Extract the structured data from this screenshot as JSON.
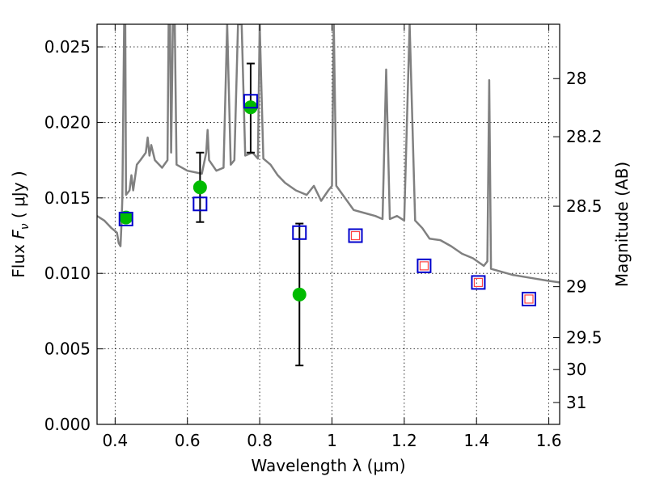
{
  "chart_data": {
    "type": "scatter",
    "xlabel": "Wavelength  λ (μm)",
    "ylabel": "Flux  F_ν  ( μJy )",
    "ylabel_right": "Magnitude (AB)",
    "xlim": [
      0.35,
      1.63
    ],
    "ylim": [
      0.0,
      0.0265
    ],
    "grid": true,
    "x_ticks": [
      {
        "value": 0.4,
        "label": "0.4"
      },
      {
        "value": 0.6,
        "label": "0.6"
      },
      {
        "value": 0.8,
        "label": "0.8"
      },
      {
        "value": 1.0,
        "label": "1"
      },
      {
        "value": 1.2,
        "label": "1.2"
      },
      {
        "value": 1.4,
        "label": "1.4"
      },
      {
        "value": 1.6,
        "label": "1.6"
      }
    ],
    "y_ticks": [
      {
        "value": 0.0,
        "label": "0.000"
      },
      {
        "value": 0.005,
        "label": "0.005"
      },
      {
        "value": 0.01,
        "label": "0.010"
      },
      {
        "value": 0.015,
        "label": "0.015"
      },
      {
        "value": 0.02,
        "label": "0.020"
      },
      {
        "value": 0.025,
        "label": "0.025"
      }
    ],
    "right_ticks": [
      {
        "flux": 0.0229,
        "label": "28"
      },
      {
        "flux": 0.01905,
        "label": "28.2"
      },
      {
        "flux": 0.01445,
        "label": "28.5"
      },
      {
        "flux": 0.00912,
        "label": "29"
      },
      {
        "flux": 0.00575,
        "label": "29.5"
      },
      {
        "flux": 0.00363,
        "label": "30"
      },
      {
        "flux": 0.00145,
        "label": "31"
      }
    ],
    "series": [
      {
        "kind": "model_spectrum",
        "color": "#808080",
        "points": [
          [
            0.35,
            0.0138
          ],
          [
            0.37,
            0.0135
          ],
          [
            0.39,
            0.013
          ],
          [
            0.405,
            0.0127
          ],
          [
            0.41,
            0.012
          ],
          [
            0.415,
            0.0118
          ],
          [
            0.418,
            0.0135
          ],
          [
            0.42,
            0.015
          ],
          [
            0.425,
            0.0265
          ],
          [
            0.428,
            0.0265
          ],
          [
            0.43,
            0.0152
          ],
          [
            0.44,
            0.0155
          ],
          [
            0.445,
            0.0165
          ],
          [
            0.45,
            0.0155
          ],
          [
            0.46,
            0.0172
          ],
          [
            0.47,
            0.0175
          ],
          [
            0.485,
            0.018
          ],
          [
            0.49,
            0.019
          ],
          [
            0.495,
            0.0178
          ],
          [
            0.5,
            0.0185
          ],
          [
            0.51,
            0.0175
          ],
          [
            0.53,
            0.017
          ],
          [
            0.545,
            0.0175
          ],
          [
            0.548,
            0.0265
          ],
          [
            0.552,
            0.0265
          ],
          [
            0.555,
            0.018
          ],
          [
            0.56,
            0.0265
          ],
          [
            0.565,
            0.0265
          ],
          [
            0.57,
            0.0172
          ],
          [
            0.6,
            0.0168
          ],
          [
            0.64,
            0.0166
          ],
          [
            0.652,
            0.018
          ],
          [
            0.656,
            0.0195
          ],
          [
            0.66,
            0.0175
          ],
          [
            0.68,
            0.0168
          ],
          [
            0.7,
            0.017
          ],
          [
            0.71,
            0.0265
          ],
          [
            0.72,
            0.0172
          ],
          [
            0.73,
            0.0175
          ],
          [
            0.74,
            0.0265
          ],
          [
            0.75,
            0.0265
          ],
          [
            0.76,
            0.0178
          ],
          [
            0.78,
            0.018
          ],
          [
            0.795,
            0.0176
          ],
          [
            0.8,
            0.0265
          ],
          [
            0.81,
            0.0176
          ],
          [
            0.83,
            0.0172
          ],
          [
            0.85,
            0.0165
          ],
          [
            0.87,
            0.016
          ],
          [
            0.9,
            0.0155
          ],
          [
            0.93,
            0.0152
          ],
          [
            0.95,
            0.0158
          ],
          [
            0.97,
            0.0148
          ],
          [
            0.99,
            0.0155
          ],
          [
            1.0,
            0.0158
          ],
          [
            1.005,
            0.0265
          ],
          [
            1.012,
            0.0158
          ],
          [
            1.03,
            0.0152
          ],
          [
            1.06,
            0.0142
          ],
          [
            1.09,
            0.014
          ],
          [
            1.12,
            0.0138
          ],
          [
            1.14,
            0.0136
          ],
          [
            1.15,
            0.0235
          ],
          [
            1.16,
            0.0136
          ],
          [
            1.18,
            0.0138
          ],
          [
            1.2,
            0.0135
          ],
          [
            1.215,
            0.0265
          ],
          [
            1.23,
            0.0135
          ],
          [
            1.25,
            0.013
          ],
          [
            1.27,
            0.0123
          ],
          [
            1.3,
            0.0122
          ],
          [
            1.33,
            0.0118
          ],
          [
            1.36,
            0.0113
          ],
          [
            1.39,
            0.011
          ],
          [
            1.42,
            0.0105
          ],
          [
            1.43,
            0.0108
          ],
          [
            1.435,
            0.0228
          ],
          [
            1.44,
            0.0103
          ],
          [
            1.47,
            0.0101
          ],
          [
            1.5,
            0.0099
          ],
          [
            1.55,
            0.0097
          ],
          [
            1.6,
            0.0095
          ],
          [
            1.63,
            0.0094
          ]
        ]
      },
      {
        "kind": "observed_with_errors",
        "color": "#00bb00",
        "points": [
          {
            "x": 0.43,
            "y": 0.0137
          },
          {
            "x": 0.635,
            "y": 0.0157,
            "yerr_low": 0.0134,
            "yerr_high": 0.018
          },
          {
            "x": 0.775,
            "y": 0.021,
            "yerr_low": 0.018,
            "yerr_high": 0.0239
          },
          {
            "x": 0.91,
            "y": 0.0086,
            "yerr_low": 0.0039,
            "yerr_high": 0.0133
          }
        ]
      },
      {
        "kind": "model_photometry",
        "color": "#0000cc",
        "points": [
          {
            "x": 0.43,
            "y": 0.0136
          },
          {
            "x": 0.635,
            "y": 0.0146
          },
          {
            "x": 0.775,
            "y": 0.0214
          },
          {
            "x": 0.91,
            "y": 0.0127
          },
          {
            "x": 1.065,
            "y": 0.0125
          },
          {
            "x": 1.255,
            "y": 0.0105
          },
          {
            "x": 1.405,
            "y": 0.0094
          },
          {
            "x": 1.545,
            "y": 0.0083
          }
        ]
      },
      {
        "kind": "predicted_photometry",
        "color": "#ff4444",
        "points": [
          {
            "x": 1.065,
            "y": 0.0125
          },
          {
            "x": 1.255,
            "y": 0.0105
          },
          {
            "x": 1.405,
            "y": 0.0094
          },
          {
            "x": 1.545,
            "y": 0.0083
          }
        ]
      }
    ]
  }
}
